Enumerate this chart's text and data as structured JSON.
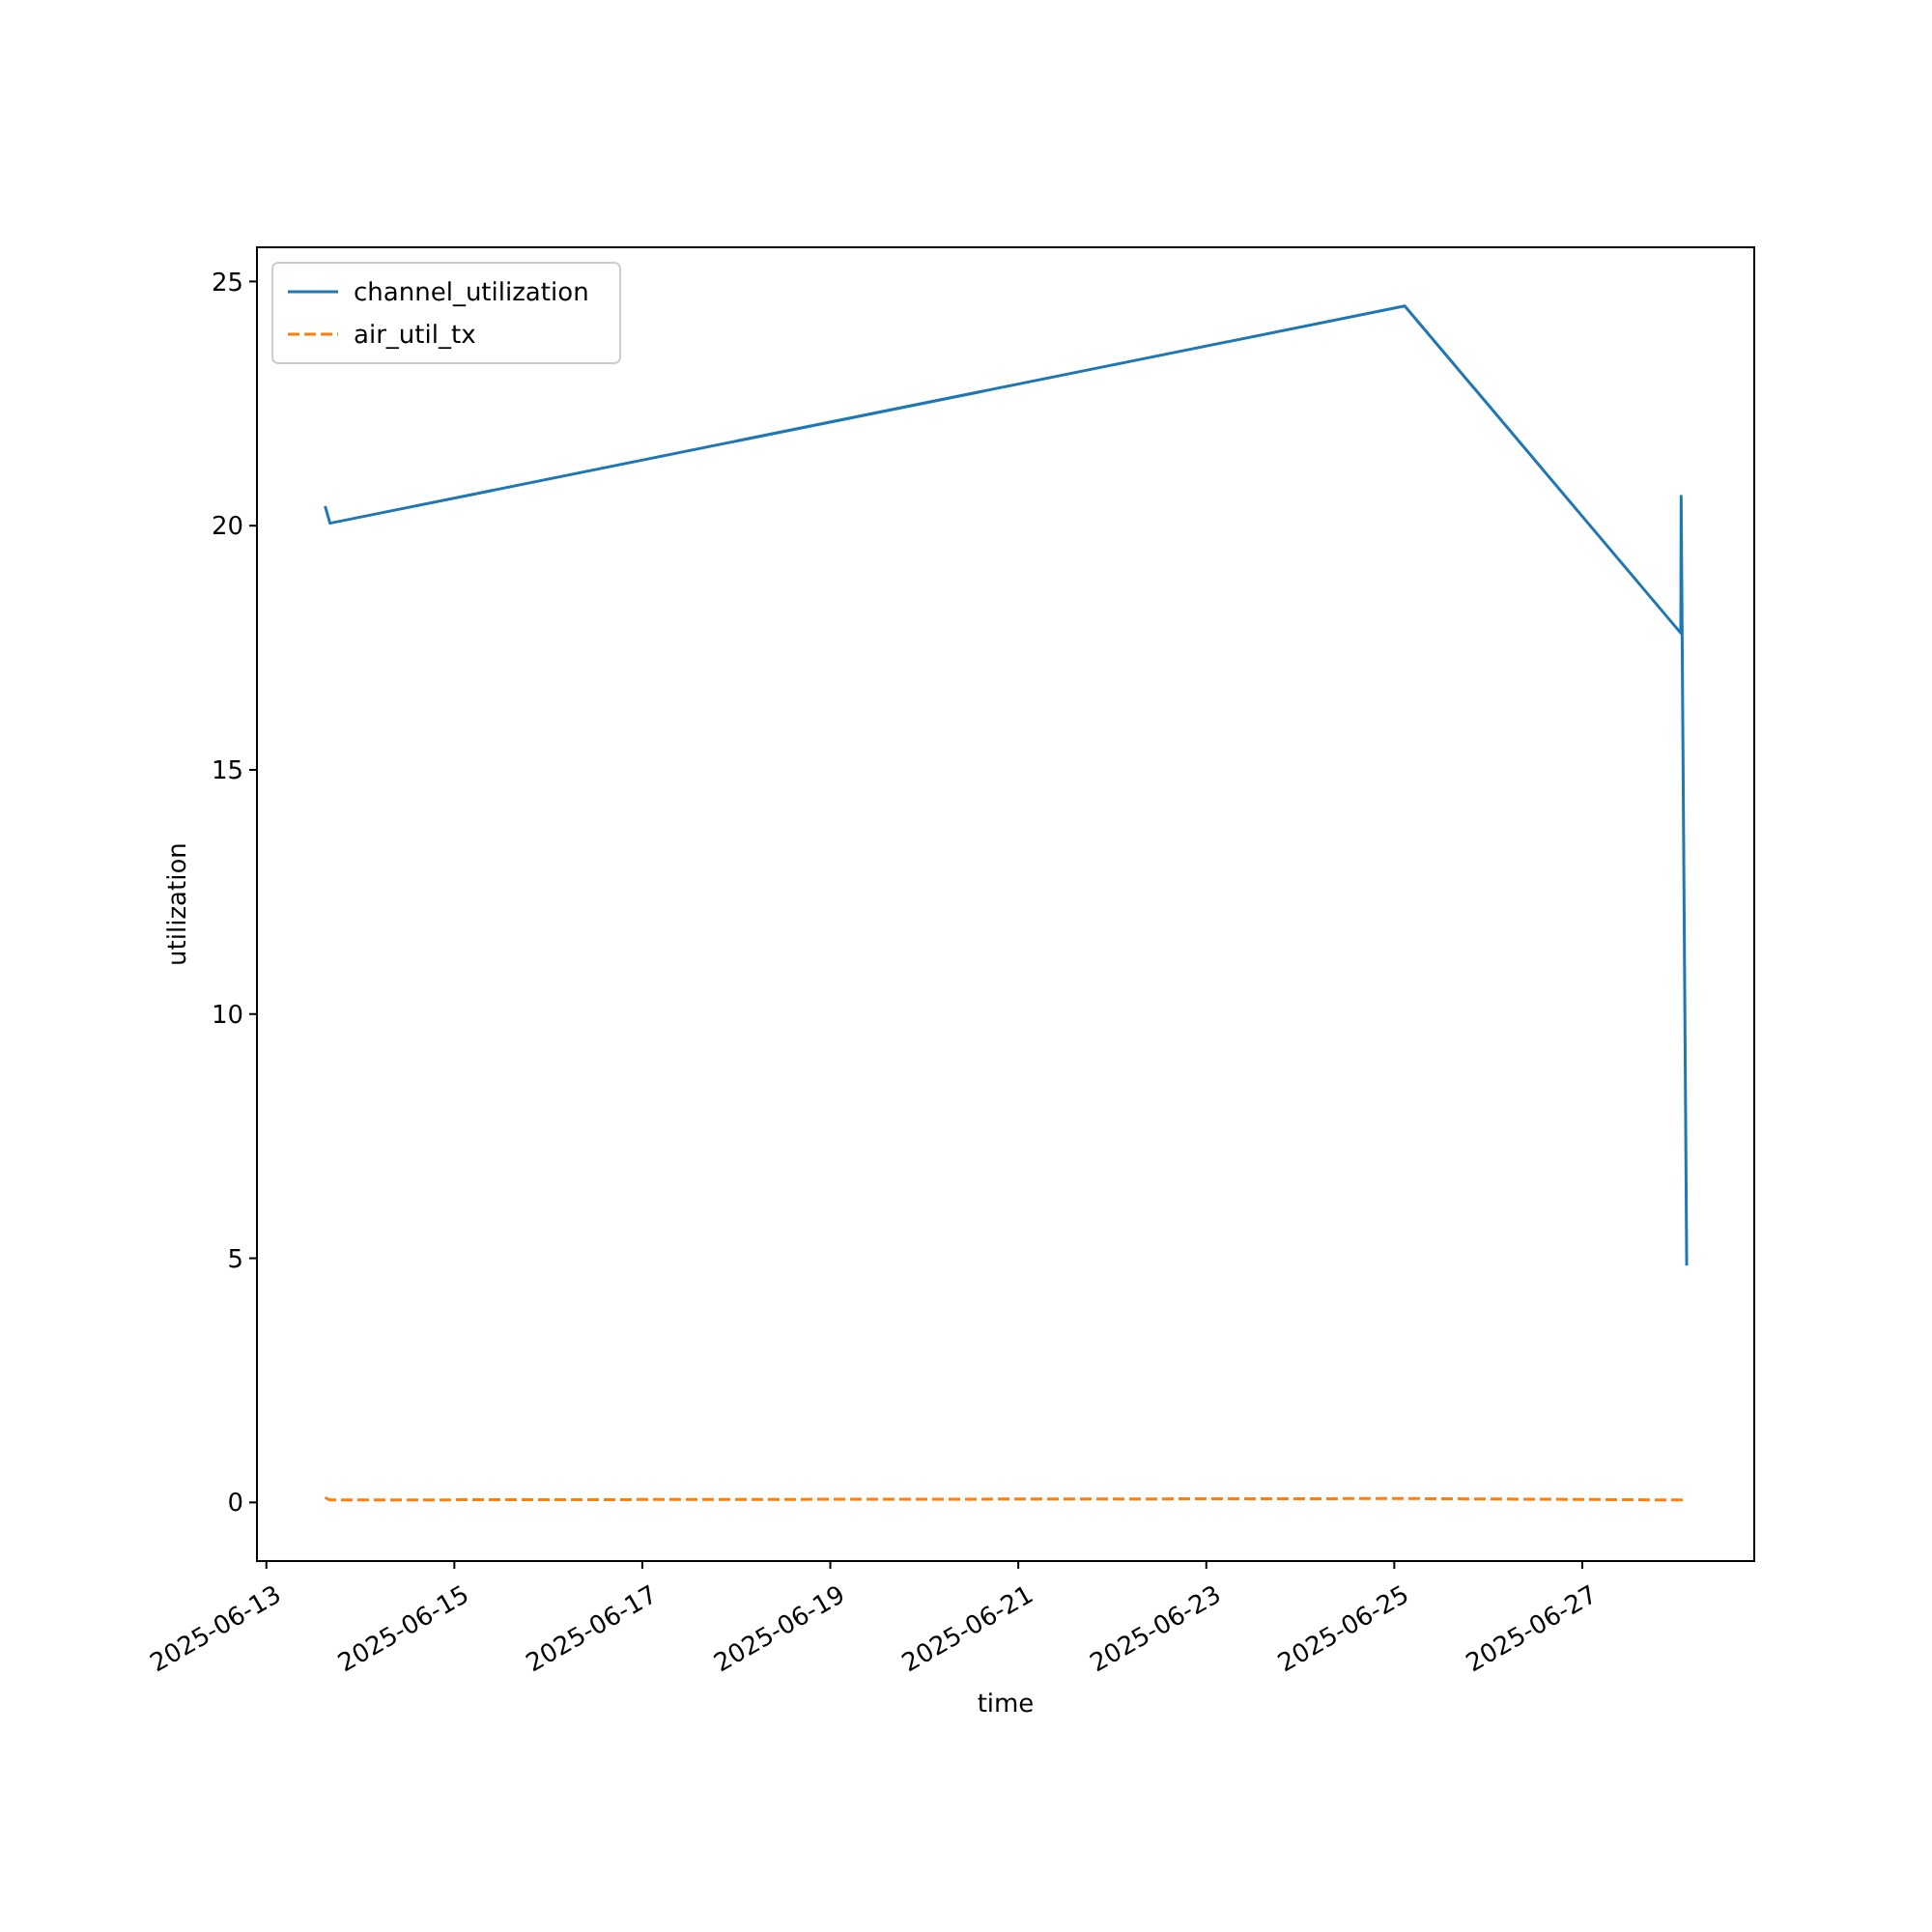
{
  "chart_data": {
    "type": "line",
    "xlabel": "time",
    "ylabel": "utilization",
    "xlim": [
      "2025-06-12T21:36",
      "2025-06-28T19:55"
    ],
    "ylim": [
      -1.2,
      25.7
    ],
    "xticks": [
      "2025-06-13",
      "2025-06-15",
      "2025-06-17",
      "2025-06-19",
      "2025-06-21",
      "2025-06-23",
      "2025-06-25",
      "2025-06-27"
    ],
    "yticks": [
      0,
      5,
      10,
      15,
      20,
      25
    ],
    "grid": false,
    "legend": "top left",
    "series": [
      {
        "name": "channel_utilization",
        "color": "#1f77b4",
        "line_style": "solid",
        "x": [
          "2025-06-13T15:00",
          "2025-06-13T16:15",
          "2025-06-25T02:40",
          "2025-06-28T01:10",
          "2025-06-28T01:15",
          "2025-06-28T02:40"
        ],
        "values": [
          20.4,
          20.05,
          24.5,
          17.8,
          20.6,
          4.85
        ]
      },
      {
        "name": "air_util_tx",
        "color": "#ff7f0e",
        "line_style": "dashed",
        "x": [
          "2025-06-13T15:00",
          "2025-06-13T16:15",
          "2025-06-25T02:40",
          "2025-06-28T01:10",
          "2025-06-28T02:40"
        ],
        "values": [
          0.1,
          0.05,
          0.08,
          0.05,
          0.05
        ]
      }
    ]
  }
}
